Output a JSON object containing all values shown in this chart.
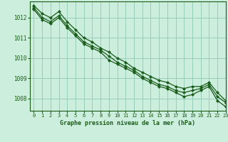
{
  "title": "Graphe pression niveau de la mer (hPa)",
  "bg_color": "#cceedd",
  "grid_color": "#99ccbb",
  "line_color": "#1a5c1a",
  "marker_color": "#1a5c1a",
  "xlim": [
    -0.5,
    23
  ],
  "ylim": [
    1007.4,
    1012.8
  ],
  "yticks": [
    1008,
    1009,
    1010,
    1011,
    1012
  ],
  "xticks": [
    0,
    1,
    2,
    3,
    4,
    5,
    6,
    7,
    8,
    9,
    10,
    11,
    12,
    13,
    14,
    15,
    16,
    17,
    18,
    19,
    20,
    21,
    22,
    23
  ],
  "series": [
    [
      1012.6,
      1012.2,
      1012.0,
      1012.3,
      1011.8,
      1011.4,
      1011.0,
      1010.8,
      1010.5,
      1010.3,
      1010.0,
      1009.8,
      1009.5,
      1009.3,
      1009.1,
      1008.9,
      1008.8,
      1008.6,
      1008.5,
      1008.6,
      1008.6,
      1008.8,
      1008.3,
      1007.9
    ],
    [
      1012.5,
      1012.0,
      1011.8,
      1012.1,
      1011.6,
      1011.2,
      1010.8,
      1010.6,
      1010.4,
      1010.1,
      1009.8,
      1009.6,
      1009.4,
      1009.1,
      1008.9,
      1008.7,
      1008.6,
      1008.4,
      1008.3,
      1008.4,
      1008.5,
      1008.7,
      1008.1,
      1007.8
    ],
    [
      1012.4,
      1011.9,
      1011.7,
      1012.0,
      1011.5,
      1011.1,
      1010.7,
      1010.5,
      1010.3,
      1009.9,
      1009.7,
      1009.5,
      1009.3,
      1009.0,
      1008.8,
      1008.6,
      1008.5,
      1008.3,
      1008.1,
      1008.2,
      1008.4,
      1008.6,
      1007.9,
      1007.6
    ]
  ]
}
